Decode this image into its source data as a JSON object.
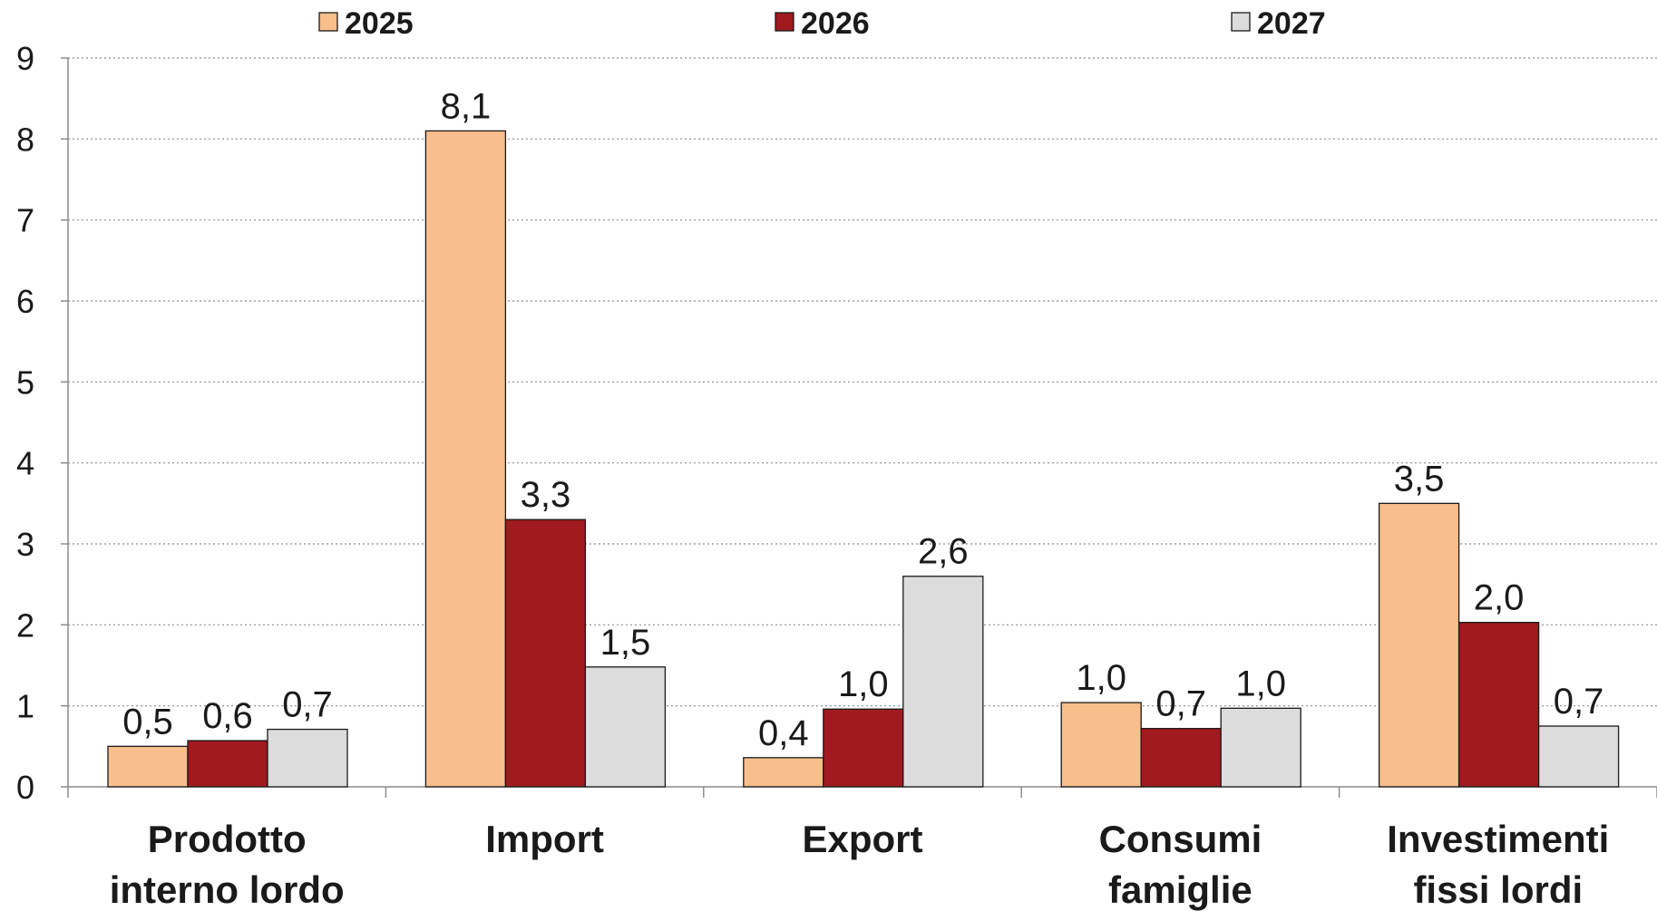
{
  "chart_data": {
    "type": "bar",
    "title": "",
    "xlabel": "",
    "ylabel": "",
    "ylim": [
      0,
      9
    ],
    "yticks": [
      0,
      1,
      2,
      3,
      4,
      5,
      6,
      7,
      8,
      9
    ],
    "grid": true,
    "legend_position": "top",
    "categories": [
      [
        "Prodotto",
        "interno lordo"
      ],
      [
        "Import"
      ],
      [
        "Export"
      ],
      [
        "Consumi",
        "famiglie"
      ],
      [
        "Investimenti",
        "fissi lordi"
      ]
    ],
    "series": [
      {
        "name": "2025",
        "color": "#F8BE8C",
        "values": [
          0.5,
          8.1,
          0.36,
          1.04,
          3.5
        ],
        "labels": [
          "0,5",
          "8,1",
          "0,4",
          "1,0",
          "3,5"
        ]
      },
      {
        "name": "2026",
        "color": "#A01A1F",
        "values": [
          0.57,
          3.3,
          0.96,
          0.72,
          2.03
        ],
        "labels": [
          "0,6",
          "3,3",
          "1,0",
          "0,7",
          "2,0"
        ]
      },
      {
        "name": "2027",
        "color": "#DCDCDC",
        "values": [
          0.71,
          1.48,
          2.6,
          0.97,
          0.75
        ],
        "labels": [
          "0,7",
          "1,5",
          "2,6",
          "1,0",
          "0,7"
        ]
      }
    ]
  }
}
